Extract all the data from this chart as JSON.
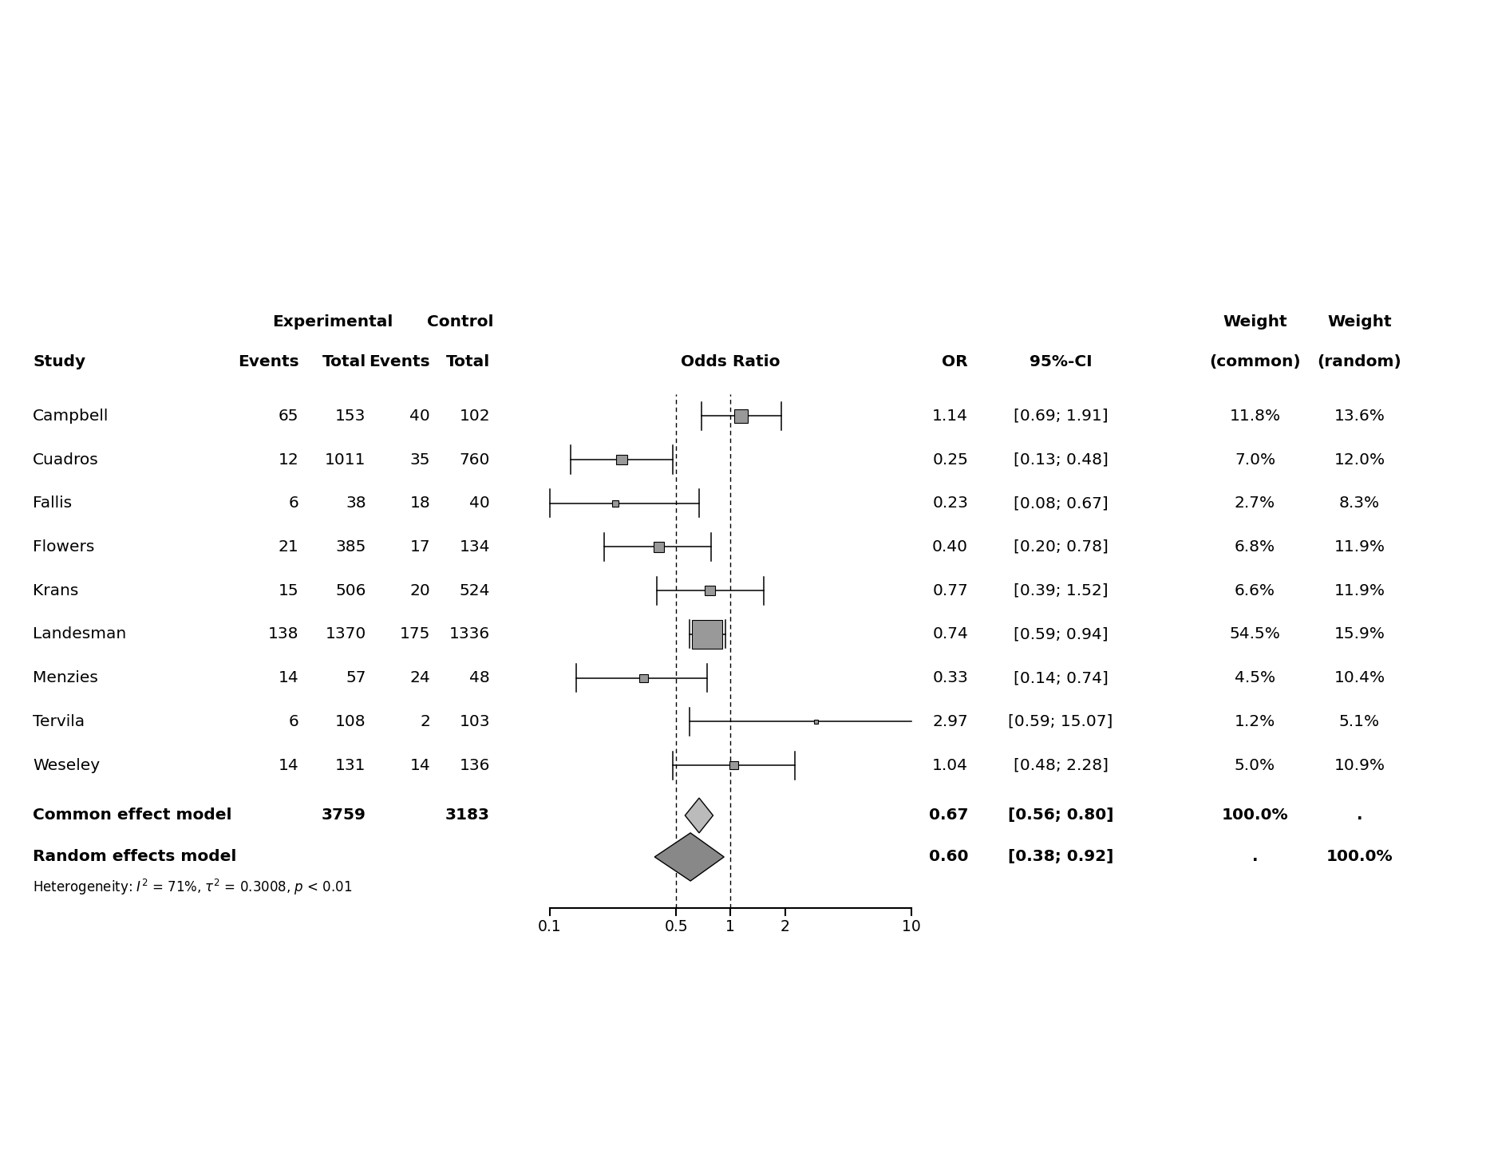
{
  "studies": [
    "Campbell",
    "Cuadros",
    "Fallis",
    "Flowers",
    "Krans",
    "Landesman",
    "Menzies",
    "Tervila",
    "Weseley"
  ],
  "exp_events": [
    65,
    12,
    6,
    21,
    15,
    138,
    14,
    6,
    14
  ],
  "exp_total": [
    153,
    1011,
    38,
    385,
    506,
    1370,
    57,
    108,
    131
  ],
  "ctrl_events": [
    40,
    35,
    18,
    17,
    20,
    175,
    24,
    2,
    14
  ],
  "ctrl_total": [
    102,
    760,
    40,
    134,
    524,
    1336,
    48,
    103,
    136
  ],
  "OR": [
    1.14,
    0.25,
    0.23,
    0.4,
    0.77,
    0.74,
    0.33,
    2.97,
    1.04
  ],
  "CI_low": [
    0.69,
    0.13,
    0.08,
    0.2,
    0.39,
    0.59,
    0.14,
    0.59,
    0.48
  ],
  "CI_high": [
    1.91,
    0.48,
    0.67,
    0.78,
    1.52,
    0.94,
    0.74,
    15.07,
    2.28
  ],
  "CI_str": [
    "[0.69; 1.91]",
    "[0.13; 0.48]",
    "[0.08; 0.67]",
    "[0.20; 0.78]",
    "[0.39; 1.52]",
    "[0.59; 0.94]",
    "[0.14; 0.74]",
    "[0.59; 15.07]",
    "[0.48; 2.28]"
  ],
  "weight_common": [
    "11.8%",
    "7.0%",
    "2.7%",
    "6.8%",
    "6.6%",
    "54.5%",
    "4.5%",
    "1.2%",
    "5.0%"
  ],
  "weight_random": [
    "13.6%",
    "12.0%",
    "8.3%",
    "11.9%",
    "11.9%",
    "15.9%",
    "10.4%",
    "5.1%",
    "10.9%"
  ],
  "weight_common_val": [
    11.8,
    7.0,
    2.7,
    6.8,
    6.6,
    54.5,
    4.5,
    1.2,
    5.0
  ],
  "common_total_exp": "3759",
  "common_total_ctrl": "3183",
  "common_OR": 0.67,
  "common_CI_low": 0.56,
  "common_CI_high": 0.8,
  "common_CI_str": "[0.56; 0.80]",
  "common_weight": "100.0%",
  "random_OR": 0.6,
  "random_CI_low": 0.38,
  "random_CI_high": 0.92,
  "random_CI_str": "[0.38; 0.92]",
  "random_weight": "100.0%",
  "fp_log_min": 0.1,
  "fp_log_max": 10.0,
  "axis_ticks": [
    0.1,
    0.5,
    1,
    2,
    10
  ],
  "axis_tick_labels": [
    "0.1",
    "0.5",
    "1",
    "2",
    "10"
  ],
  "bg_color": "#ffffff",
  "font_size": 14.5,
  "font_size_small": 12.0
}
